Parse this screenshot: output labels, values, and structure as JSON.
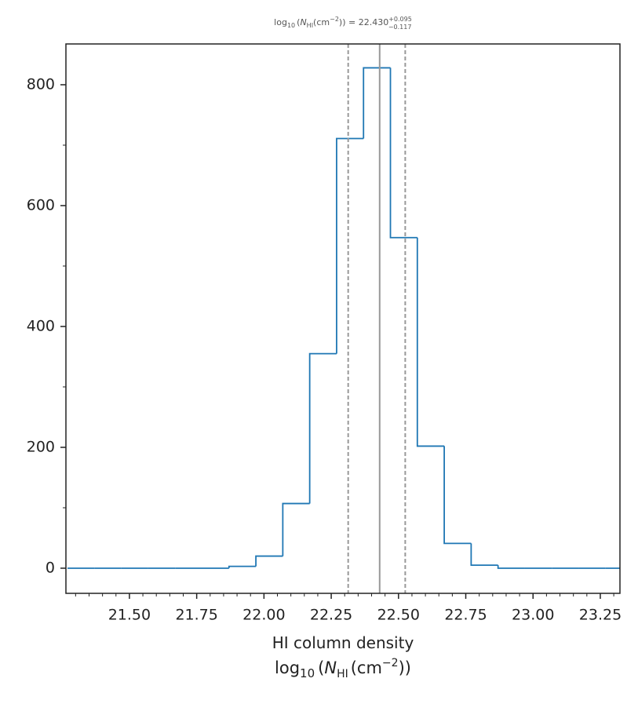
{
  "chart_data": {
    "type": "histogram",
    "title": {
      "lhs": "log",
      "lhs_sub": "10",
      "open": "(",
      "n": "N",
      "n_sub": "HI",
      "unit": "(cm",
      "unit_sup": "−2",
      "close": ")) = 22.430",
      "sup": "+0.095",
      "sub": "−0.117"
    },
    "xlabel": "HI column density",
    "xlabel2": {
      "lhs": "log",
      "lhs_sub": "10",
      "open": "(",
      "n": "N",
      "n_sub": "HI",
      "unit": "(cm",
      "unit_sup": "−2",
      "close": "))"
    },
    "bins": [
      21.27,
      21.37,
      21.47,
      21.57,
      21.67,
      21.77,
      21.87,
      21.97,
      22.07,
      22.17,
      22.27,
      22.37,
      22.47,
      22.57,
      22.67,
      22.77,
      22.87,
      22.97,
      23.07,
      23.17,
      23.27,
      23.37
    ],
    "values": [
      0,
      0,
      0,
      0,
      0,
      0,
      3,
      20,
      107,
      355,
      711,
      828,
      547,
      202,
      41,
      5,
      0,
      0,
      0,
      0,
      0
    ],
    "color": "#1f77b4",
    "median": 22.43,
    "lower": 22.313,
    "upper": 22.525,
    "xlim": [
      21.264,
      23.323
    ],
    "ylim": [
      -41.6,
      867.5
    ],
    "xticks": [
      {
        "value": 21.5,
        "label": "21.50"
      },
      {
        "value": 21.75,
        "label": "21.75"
      },
      {
        "value": 22.0,
        "label": "22.00"
      },
      {
        "value": 22.25,
        "label": "22.25"
      },
      {
        "value": 22.5,
        "label": "22.50"
      },
      {
        "value": 22.75,
        "label": "22.75"
      },
      {
        "value": 23.0,
        "label": "23.00"
      },
      {
        "value": 23.25,
        "label": "23.25"
      }
    ],
    "xminor": [
      21.3,
      21.35,
      21.4,
      21.45,
      21.55,
      21.6,
      21.65,
      21.7,
      21.8,
      21.85,
      21.9,
      21.95,
      22.05,
      22.1,
      22.15,
      22.2,
      22.3,
      22.35,
      22.4,
      22.45,
      22.55,
      22.6,
      22.65,
      22.7,
      22.8,
      22.85,
      22.9,
      22.95,
      23.05,
      23.1,
      23.15,
      23.2,
      23.3
    ],
    "yticks": [
      0,
      200,
      400,
      600,
      800
    ],
    "yminor": [
      100,
      300,
      500,
      700
    ]
  }
}
